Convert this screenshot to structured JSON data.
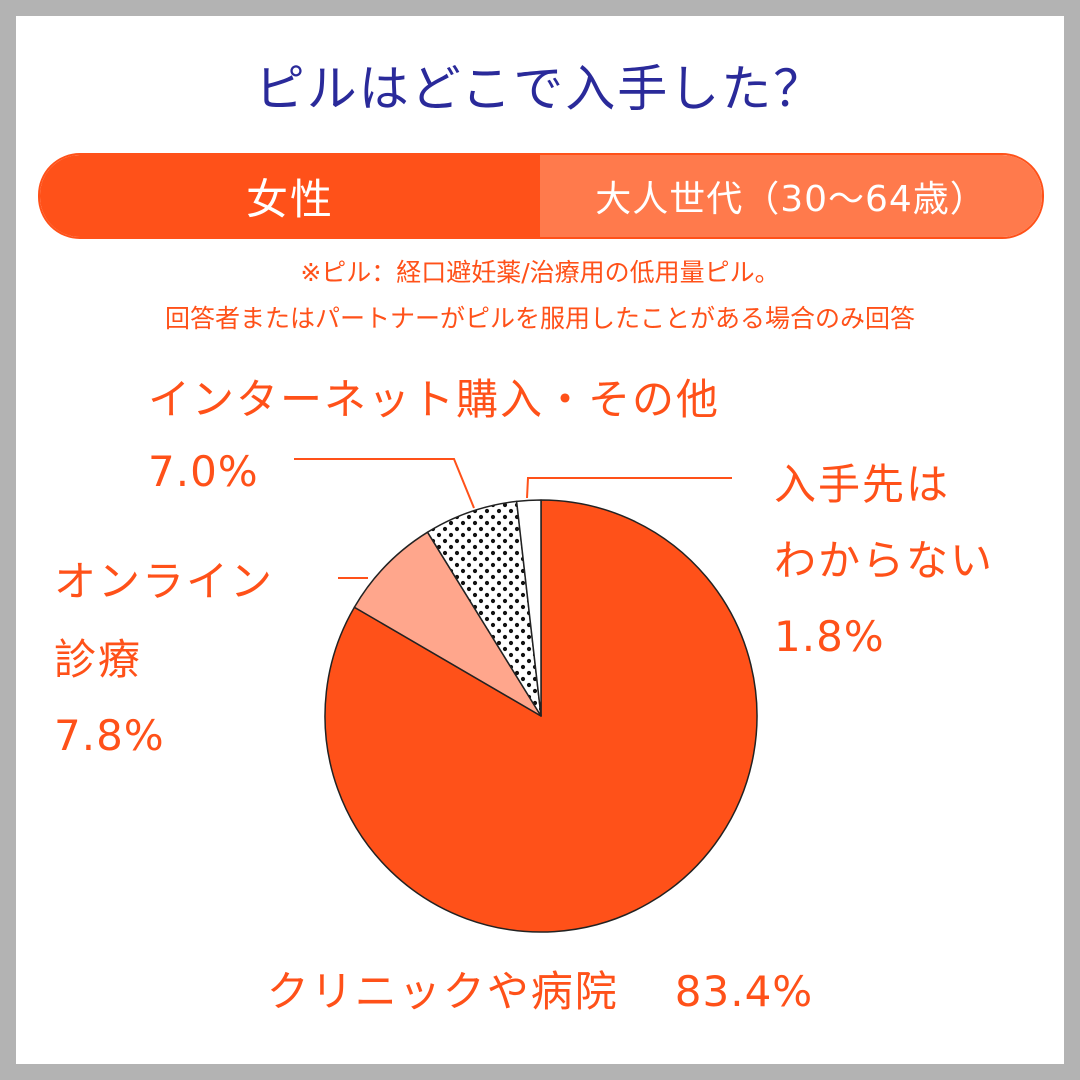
{
  "header": {
    "title": "ピルはどこで入手した？",
    "segment_left": "女性",
    "segment_right": "大人世代（30～64歳）"
  },
  "notes": {
    "line1": "※ピル：経口避妊薬/治療用の低用量ピル。",
    "line2": "回答者またはパートナーがピルを服用したことがある場合のみ回答"
  },
  "colors": {
    "accent": "#ff5119",
    "accent_light": "#ff7a4c",
    "title": "#2a2a9a",
    "online": "#ffa68c",
    "unknown": "#ffffff"
  },
  "chart_data": {
    "type": "pie",
    "start_angle_deg": 0,
    "direction": "clockwise",
    "slices": [
      {
        "label": "クリニックや病院",
        "value": 83.4,
        "value_text": "83.4%",
        "color": "#ff5119",
        "pattern": "none"
      },
      {
        "label": "オンライン診療",
        "label_lines": [
          "オンライン",
          "診療"
        ],
        "value": 7.8,
        "value_text": "7.8%",
        "color": "#ffa68c",
        "pattern": "none"
      },
      {
        "label": "インターネット購入・その他",
        "value": 7.0,
        "value_text": "7.0%",
        "color": "#ffffff",
        "pattern": "dots"
      },
      {
        "label": "入手先はわからない",
        "label_lines": [
          "入手先は",
          "わからない"
        ],
        "value": 1.8,
        "value_text": "1.8%",
        "color": "#ffffff",
        "pattern": "none"
      }
    ]
  }
}
